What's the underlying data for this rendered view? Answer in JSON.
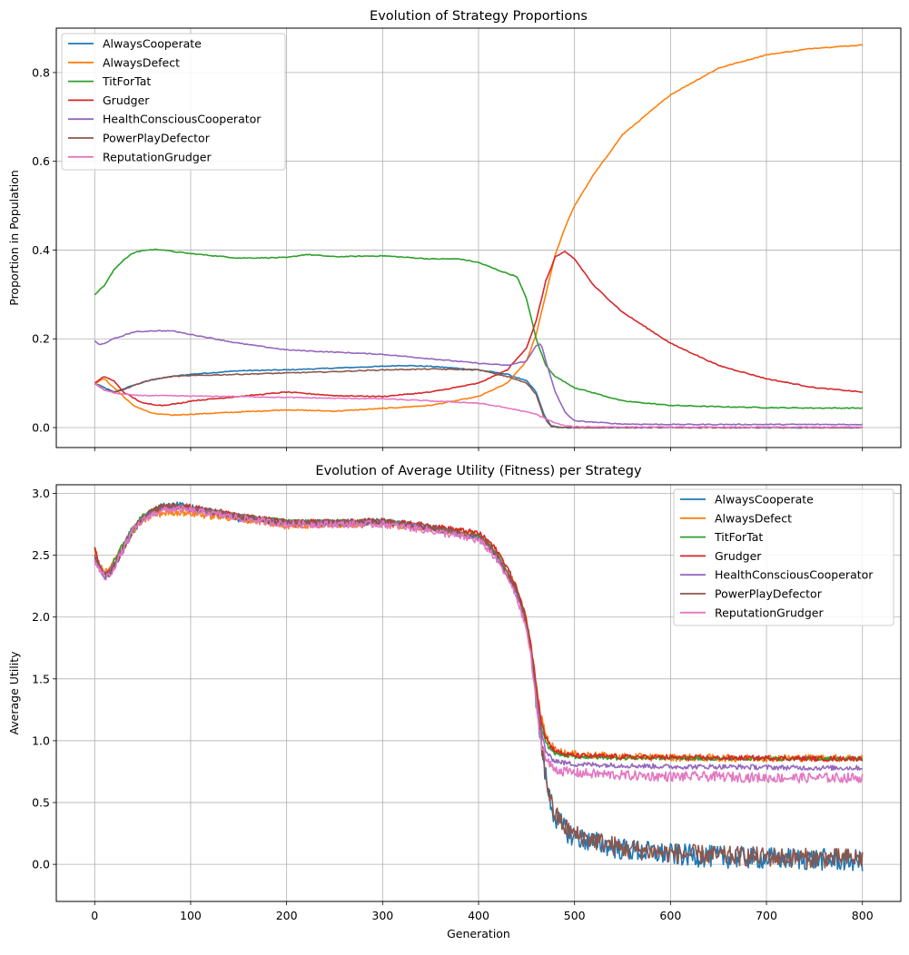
{
  "chart_data": [
    {
      "type": "line",
      "title": "Evolution of Strategy Proportions",
      "xlabel": "",
      "ylabel": "Proportion in Population",
      "xlim": [
        -40,
        840
      ],
      "ylim": [
        -0.045,
        0.9
      ],
      "xticks": [
        0,
        100,
        200,
        300,
        400,
        500,
        600,
        700,
        800
      ],
      "xtick_labels_shown": false,
      "yticks": [
        0.0,
        0.2,
        0.4,
        0.6,
        0.8
      ],
      "ytick_labels": [
        "0.0",
        "0.2",
        "0.4",
        "0.6",
        "0.8"
      ],
      "grid": true,
      "legend_position": "top-left",
      "series": [
        {
          "name": "AlwaysCooperate",
          "color": "#1f77b4",
          "x": [
            0,
            10,
            20,
            40,
            60,
            80,
            100,
            150,
            200,
            250,
            300,
            320,
            350,
            400,
            430,
            450,
            460,
            468,
            475,
            485,
            500,
            600,
            700,
            800
          ],
          "y": [
            0.1,
            0.09,
            0.08,
            0.095,
            0.108,
            0.115,
            0.12,
            0.128,
            0.13,
            0.134,
            0.138,
            0.14,
            0.138,
            0.13,
            0.12,
            0.105,
            0.08,
            0.03,
            0.005,
            0.0,
            0.0,
            0.0,
            0.0,
            0.0
          ]
        },
        {
          "name": "AlwaysDefect",
          "color": "#ff7f0e",
          "x": [
            0,
            10,
            20,
            40,
            60,
            80,
            100,
            150,
            200,
            250,
            300,
            350,
            400,
            430,
            450,
            460,
            470,
            480,
            490,
            500,
            520,
            550,
            600,
            650,
            700,
            750,
            800
          ],
          "y": [
            0.1,
            0.11,
            0.09,
            0.05,
            0.032,
            0.028,
            0.03,
            0.035,
            0.04,
            0.037,
            0.043,
            0.05,
            0.07,
            0.1,
            0.15,
            0.21,
            0.3,
            0.39,
            0.45,
            0.5,
            0.57,
            0.66,
            0.75,
            0.81,
            0.84,
            0.855,
            0.862
          ]
        },
        {
          "name": "TitForTat",
          "color": "#2ca02c",
          "x": [
            0,
            10,
            20,
            30,
            40,
            50,
            60,
            70,
            80,
            100,
            150,
            200,
            220,
            250,
            300,
            350,
            380,
            400,
            420,
            440,
            450,
            460,
            470,
            480,
            500,
            550,
            600,
            650,
            700,
            750,
            800
          ],
          "y": [
            0.3,
            0.32,
            0.355,
            0.378,
            0.393,
            0.399,
            0.401,
            0.401,
            0.397,
            0.392,
            0.382,
            0.383,
            0.39,
            0.385,
            0.387,
            0.38,
            0.38,
            0.372,
            0.355,
            0.34,
            0.29,
            0.2,
            0.14,
            0.115,
            0.09,
            0.06,
            0.05,
            0.047,
            0.045,
            0.044,
            0.044
          ]
        },
        {
          "name": "Grudger",
          "color": "#d62728",
          "x": [
            0,
            10,
            20,
            30,
            50,
            70,
            90,
            100,
            150,
            200,
            250,
            300,
            350,
            400,
            430,
            450,
            460,
            470,
            480,
            490,
            500,
            520,
            550,
            600,
            650,
            700,
            750,
            800
          ],
          "y": [
            0.1,
            0.115,
            0.105,
            0.08,
            0.055,
            0.05,
            0.055,
            0.06,
            0.07,
            0.08,
            0.072,
            0.07,
            0.08,
            0.1,
            0.13,
            0.18,
            0.24,
            0.33,
            0.385,
            0.396,
            0.38,
            0.32,
            0.26,
            0.19,
            0.14,
            0.11,
            0.09,
            0.08
          ]
        },
        {
          "name": "HealthConsciousCooperator",
          "color": "#9467bd",
          "x": [
            0,
            5,
            10,
            20,
            40,
            60,
            80,
            100,
            150,
            200,
            250,
            300,
            350,
            400,
            430,
            450,
            460,
            465,
            470,
            480,
            490,
            500,
            550,
            600,
            700,
            800
          ],
          "y": [
            0.195,
            0.186,
            0.19,
            0.2,
            0.215,
            0.218,
            0.218,
            0.21,
            0.19,
            0.175,
            0.17,
            0.165,
            0.155,
            0.145,
            0.14,
            0.15,
            0.185,
            0.19,
            0.15,
            0.08,
            0.035,
            0.015,
            0.008,
            0.007,
            0.007,
            0.007
          ]
        },
        {
          "name": "PowerPlayDefector",
          "color": "#8c564b",
          "x": [
            0,
            10,
            20,
            30,
            40,
            60,
            80,
            100,
            150,
            200,
            250,
            300,
            350,
            400,
            430,
            450,
            460,
            468,
            475,
            485,
            500,
            600,
            700,
            800
          ],
          "y": [
            0.1,
            0.085,
            0.08,
            0.085,
            0.095,
            0.108,
            0.115,
            0.117,
            0.12,
            0.123,
            0.126,
            0.13,
            0.132,
            0.13,
            0.115,
            0.1,
            0.075,
            0.025,
            0.003,
            0.0,
            0.0,
            0.0,
            0.0,
            0.0
          ]
        },
        {
          "name": "ReputationGrudger",
          "color": "#e377c2",
          "x": [
            0,
            10,
            20,
            40,
            60,
            100,
            150,
            200,
            250,
            300,
            350,
            400,
            420,
            440,
            460,
            470,
            480,
            490,
            500,
            600,
            700,
            800
          ],
          "y": [
            0.1,
            0.085,
            0.078,
            0.073,
            0.072,
            0.071,
            0.07,
            0.068,
            0.066,
            0.065,
            0.06,
            0.055,
            0.048,
            0.04,
            0.03,
            0.02,
            0.01,
            0.004,
            0.002,
            0.001,
            0.001,
            0.001
          ]
        }
      ]
    },
    {
      "type": "line",
      "title": "Evolution of Average Utility (Fitness) per Strategy",
      "xlabel": "Generation",
      "ylabel": "Average Utility",
      "xlim": [
        -40,
        840
      ],
      "ylim": [
        -0.3,
        3.07
      ],
      "xticks": [
        0,
        100,
        200,
        300,
        400,
        500,
        600,
        700,
        800
      ],
      "xtick_labels": [
        "0",
        "100",
        "200",
        "300",
        "400",
        "500",
        "600",
        "700",
        "800"
      ],
      "yticks": [
        0.0,
        0.5,
        1.0,
        1.5,
        2.0,
        2.5,
        3.0
      ],
      "ytick_labels": [
        "0.0",
        "0.5",
        "1.0",
        "1.5",
        "2.0",
        "2.5",
        "3.0"
      ],
      "grid": true,
      "legend_position": "top-right",
      "series": [
        {
          "name": "AlwaysCooperate",
          "color": "#1f77b4",
          "x": [
            0,
            5,
            10,
            15,
            20,
            30,
            40,
            50,
            60,
            70,
            80,
            90,
            100,
            120,
            150,
            200,
            250,
            300,
            350,
            400,
            410,
            420,
            430,
            440,
            450,
            455,
            460,
            465,
            470,
            475,
            480,
            490,
            500,
            550,
            600,
            650,
            700,
            750,
            800
          ],
          "y": [
            2.55,
            2.4,
            2.33,
            2.35,
            2.42,
            2.55,
            2.7,
            2.8,
            2.86,
            2.89,
            2.9,
            2.9,
            2.88,
            2.85,
            2.8,
            2.76,
            2.76,
            2.77,
            2.72,
            2.65,
            2.58,
            2.48,
            2.35,
            2.2,
            1.95,
            1.7,
            1.35,
            1.0,
            0.7,
            0.5,
            0.38,
            0.28,
            0.22,
            0.12,
            0.08,
            0.06,
            0.05,
            0.04,
            0.03
          ],
          "noise": 0.09
        },
        {
          "name": "AlwaysDefect",
          "color": "#ff7f0e",
          "x": [
            0,
            5,
            10,
            15,
            20,
            30,
            40,
            50,
            60,
            70,
            80,
            90,
            100,
            120,
            150,
            200,
            250,
            300,
            350,
            400,
            410,
            420,
            430,
            440,
            450,
            455,
            460,
            465,
            470,
            475,
            480,
            490,
            500,
            550,
            600,
            650,
            700,
            750,
            800
          ],
          "y": [
            2.55,
            2.42,
            2.36,
            2.38,
            2.45,
            2.58,
            2.7,
            2.78,
            2.82,
            2.84,
            2.85,
            2.85,
            2.84,
            2.82,
            2.8,
            2.74,
            2.75,
            2.76,
            2.72,
            2.66,
            2.6,
            2.5,
            2.38,
            2.22,
            1.98,
            1.75,
            1.45,
            1.2,
            1.05,
            0.97,
            0.93,
            0.9,
            0.89,
            0.87,
            0.865,
            0.86,
            0.86,
            0.86,
            0.86
          ],
          "noise": 0.03
        },
        {
          "name": "TitForTat",
          "color": "#2ca02c",
          "x": [
            0,
            5,
            10,
            15,
            20,
            30,
            40,
            50,
            60,
            70,
            80,
            90,
            100,
            120,
            150,
            200,
            250,
            300,
            350,
            400,
            410,
            420,
            430,
            440,
            450,
            455,
            460,
            465,
            470,
            475,
            480,
            490,
            500,
            550,
            600,
            650,
            700,
            750,
            800
          ],
          "y": [
            2.5,
            2.4,
            2.35,
            2.37,
            2.45,
            2.6,
            2.73,
            2.82,
            2.87,
            2.9,
            2.9,
            2.9,
            2.88,
            2.86,
            2.82,
            2.78,
            2.77,
            2.78,
            2.73,
            2.66,
            2.6,
            2.5,
            2.37,
            2.2,
            1.95,
            1.72,
            1.4,
            1.12,
            0.98,
            0.93,
            0.9,
            0.88,
            0.87,
            0.86,
            0.86,
            0.855,
            0.855,
            0.855,
            0.855
          ],
          "noise": 0.015
        },
        {
          "name": "Grudger",
          "color": "#d62728",
          "x": [
            0,
            5,
            10,
            15,
            20,
            30,
            40,
            50,
            60,
            70,
            80,
            90,
            100,
            120,
            150,
            200,
            250,
            300,
            350,
            400,
            410,
            420,
            430,
            440,
            450,
            455,
            460,
            465,
            470,
            475,
            480,
            490,
            500,
            550,
            600,
            650,
            700,
            750,
            800
          ],
          "y": [
            2.55,
            2.42,
            2.36,
            2.36,
            2.4,
            2.55,
            2.7,
            2.8,
            2.86,
            2.89,
            2.9,
            2.91,
            2.89,
            2.86,
            2.82,
            2.77,
            2.77,
            2.78,
            2.74,
            2.68,
            2.62,
            2.53,
            2.4,
            2.23,
            1.98,
            1.75,
            1.45,
            1.18,
            1.03,
            0.96,
            0.92,
            0.89,
            0.88,
            0.87,
            0.865,
            0.86,
            0.86,
            0.855,
            0.855
          ],
          "noise": 0.02
        },
        {
          "name": "HealthConsciousCooperator",
          "color": "#9467bd",
          "x": [
            0,
            5,
            10,
            15,
            20,
            30,
            40,
            50,
            60,
            70,
            80,
            90,
            100,
            120,
            150,
            200,
            250,
            300,
            350,
            400,
            410,
            420,
            430,
            440,
            450,
            455,
            460,
            465,
            470,
            475,
            480,
            490,
            500,
            550,
            600,
            650,
            700,
            750,
            800
          ],
          "y": [
            2.48,
            2.4,
            2.34,
            2.35,
            2.43,
            2.58,
            2.72,
            2.8,
            2.85,
            2.88,
            2.89,
            2.89,
            2.87,
            2.85,
            2.81,
            2.76,
            2.76,
            2.77,
            2.72,
            2.64,
            2.58,
            2.48,
            2.35,
            2.18,
            1.93,
            1.7,
            1.38,
            1.08,
            0.92,
            0.86,
            0.84,
            0.82,
            0.81,
            0.8,
            0.79,
            0.79,
            0.785,
            0.78,
            0.78
          ],
          "noise": 0.02
        },
        {
          "name": "PowerPlayDefector",
          "color": "#8c564b",
          "x": [
            0,
            5,
            10,
            15,
            20,
            30,
            40,
            50,
            60,
            70,
            80,
            90,
            100,
            120,
            150,
            200,
            250,
            300,
            350,
            400,
            410,
            420,
            430,
            440,
            450,
            455,
            460,
            465,
            470,
            475,
            480,
            490,
            500,
            550,
            600,
            650,
            700,
            750,
            800
          ],
          "y": [
            2.5,
            2.4,
            2.34,
            2.35,
            2.42,
            2.56,
            2.7,
            2.8,
            2.86,
            2.89,
            2.9,
            2.9,
            2.88,
            2.86,
            2.81,
            2.76,
            2.76,
            2.77,
            2.72,
            2.65,
            2.58,
            2.48,
            2.35,
            2.2,
            1.95,
            1.7,
            1.35,
            1.0,
            0.72,
            0.52,
            0.4,
            0.3,
            0.24,
            0.13,
            0.09,
            0.07,
            0.06,
            0.05,
            0.05
          ],
          "noise": 0.08
        },
        {
          "name": "ReputationGrudger",
          "color": "#e377c2",
          "x": [
            0,
            5,
            10,
            15,
            20,
            30,
            40,
            50,
            60,
            70,
            80,
            90,
            100,
            120,
            150,
            200,
            250,
            300,
            350,
            400,
            410,
            420,
            430,
            440,
            450,
            455,
            460,
            465,
            470,
            475,
            480,
            490,
            500,
            550,
            600,
            650,
            700,
            750,
            800
          ],
          "y": [
            2.45,
            2.38,
            2.32,
            2.33,
            2.4,
            2.55,
            2.7,
            2.78,
            2.83,
            2.86,
            2.87,
            2.87,
            2.86,
            2.84,
            2.8,
            2.75,
            2.75,
            2.75,
            2.7,
            2.62,
            2.55,
            2.45,
            2.32,
            2.15,
            1.9,
            1.65,
            1.3,
            1.0,
            0.85,
            0.8,
            0.77,
            0.75,
            0.74,
            0.72,
            0.71,
            0.71,
            0.7,
            0.7,
            0.7
          ],
          "noise": 0.04
        }
      ]
    }
  ]
}
